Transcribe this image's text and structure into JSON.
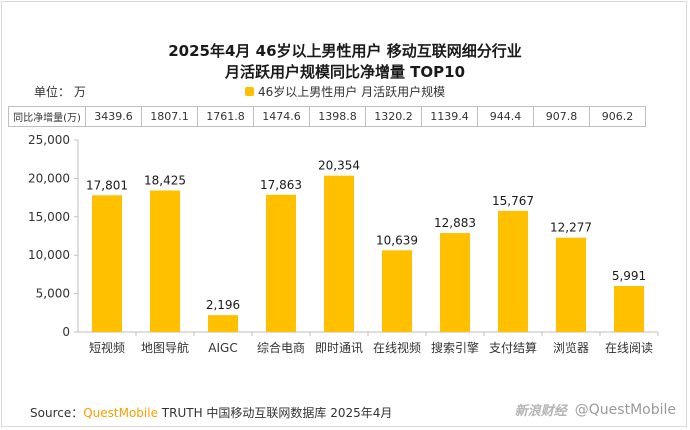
{
  "title_line1": "2025年4月 46岁以上男性用户 移动互联网细分行业",
  "title_line2": "月活跃用户规模同比净增量 TOP10",
  "unit_label": "单位：  万",
  "legend_label": "46岁以上男性用户 月活跃用户规模",
  "yoy_row": {
    "header": "同比净增量(万)",
    "values": [
      "3439.6",
      "1807.1",
      "1761.8",
      "1474.6",
      "1398.8",
      "1320.2",
      "1139.4",
      "944.4",
      "907.8",
      "906.2"
    ]
  },
  "source": {
    "prefix": "Source：",
    "brand": "QuestMobile",
    "rest": " TRUTH 中国移动互联网数据库 2025年4月"
  },
  "watermark": {
    "logo": "新浪财经",
    "handle": "@QuestMobile"
  },
  "colors": {
    "bar": "#FFC000",
    "accent": "#F5A000"
  },
  "chart_data": {
    "type": "bar",
    "categories": [
      "短视频",
      "地图导航",
      "AIGC",
      "综合电商",
      "即时通讯",
      "在线视频",
      "搜索引擎",
      "支付结算",
      "浏览器",
      "在线阅读"
    ],
    "values": [
      17801,
      18425,
      2196,
      17863,
      20354,
      10639,
      12883,
      15767,
      12277,
      5991
    ],
    "value_labels": [
      "17,801",
      "18,425",
      "2,196",
      "17,863",
      "20,354",
      "10,639",
      "12,883",
      "15,767",
      "12,277",
      "5,991"
    ],
    "yticks": [
      0,
      5000,
      10000,
      15000,
      20000,
      25000
    ],
    "ytick_labels": [
      "0",
      "5,000",
      "10,000",
      "15,000",
      "20,000",
      "25,000"
    ],
    "ylim": [
      0,
      25000
    ],
    "grid": false
  }
}
